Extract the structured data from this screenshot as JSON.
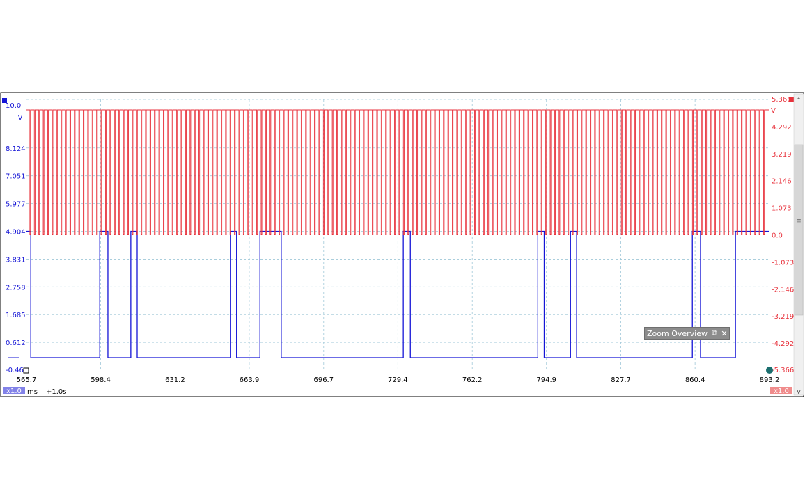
{
  "chart_data": {
    "type": "line",
    "x_unit": "ms",
    "x_offset_label": "+1.0s",
    "xlim": [
      565.7,
      893.2
    ],
    "x_ticks": [
      "565.7",
      "598.4",
      "631.2",
      "663.9",
      "696.7",
      "729.4",
      "762.2",
      "794.9",
      "827.7",
      "860.4",
      "893.2"
    ],
    "left_axis": {
      "ticks": [
        "10.0",
        "8.124",
        "7.051",
        "5.977",
        "4.904",
        "3.831",
        "2.758",
        "1.685",
        "0.612",
        "-0.46"
      ],
      "unit": "V",
      "color": "#1515d6",
      "scale_label": "x1.0"
    },
    "right_axis": {
      "ticks": [
        "5.366",
        "4.292",
        "3.219",
        "2.146",
        "1.073",
        "0.0",
        "-1.073",
        "-2.146",
        "-3.219",
        "-4.292",
        "-5.366"
      ],
      "unit": "V",
      "color": "#e8323c",
      "scale_label": "x1.0"
    },
    "grid": true,
    "series": [
      {
        "color": "#1515d6",
        "high": 4.904,
        "low": -0.46,
        "transitions_ms": [
          567.6,
          598.0,
          601.6,
          611.7,
          614.5,
          655.7,
          658.3,
          668.6,
          678.0,
          731.8,
          734.9,
          791.1,
          793.9,
          805.5,
          808.2,
          859.2,
          862.8,
          878.2
        ],
        "start_level": "high"
      },
      {
        "color": "#e8323c",
        "high": 5.0,
        "low": 0.0,
        "pulse_start_ms": 567.2,
        "pulse_period_ms": 1.96,
        "pulse_width_ms": 0.35,
        "pulse_end_ms": 891.5
      }
    ]
  },
  "ui": {
    "zoom_overview_title": "Zoom Overview",
    "zoom_restore_icon": "restore-icon",
    "zoom_close_icon": "close-icon"
  }
}
